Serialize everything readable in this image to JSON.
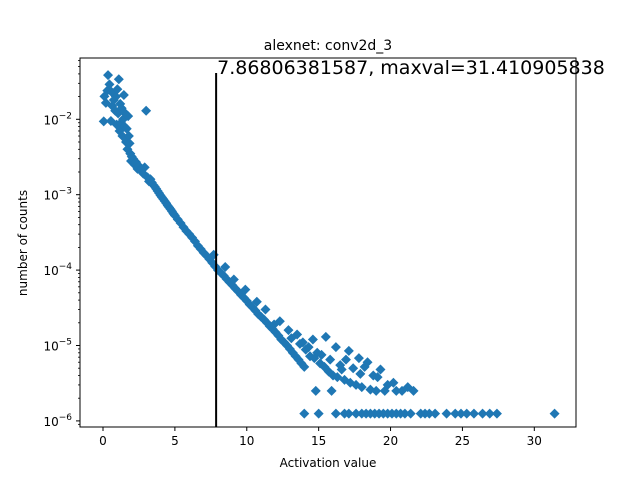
{
  "chart_data": {
    "type": "scatter",
    "title": "alexnet: conv2d_3",
    "xlabel": "Activation value",
    "ylabel": "number of counts",
    "xlim": [
      -1.6,
      32.9
    ],
    "ylim": [
      8.3e-07,
      0.065
    ],
    "yscale": "log",
    "x_ticks": [
      0,
      5,
      10,
      15,
      20,
      25,
      30
    ],
    "y_ticks": [
      {
        "value": 1e-06,
        "base": "10",
        "exp": "−6"
      },
      {
        "value": 1e-05,
        "base": "10",
        "exp": "−5"
      },
      {
        "value": 0.0001,
        "base": "10",
        "exp": "−4"
      },
      {
        "value": 0.001,
        "base": "10",
        "exp": "−3"
      },
      {
        "value": 0.01,
        "base": "10",
        "exp": "−2"
      }
    ],
    "marker_color": "#1f77b4",
    "marker": "diamond",
    "grid": false,
    "vline": {
      "x": 7.86806381587,
      "color": "#000000"
    },
    "annotation": "7.86806381587, maxval=31.410905838",
    "series": [
      {
        "points": [
          [
            0.05,
            0.0094
          ],
          [
            0.1,
            0.0201
          ],
          [
            0.2,
            0.0165
          ],
          [
            0.3,
            0.024
          ],
          [
            0.35,
            0.0385
          ],
          [
            0.45,
            0.029
          ],
          [
            0.55,
            0.0095
          ],
          [
            0.6,
            0.023
          ],
          [
            0.65,
            0.015
          ],
          [
            0.75,
            0.018
          ],
          [
            0.85,
            0.013
          ],
          [
            0.9,
            0.02
          ],
          [
            0.95,
            0.0085
          ],
          [
            1.0,
            0.025
          ],
          [
            1.05,
            0.012
          ],
          [
            1.1,
            0.034
          ],
          [
            1.15,
            0.007
          ],
          [
            1.2,
            0.016
          ],
          [
            1.25,
            0.009
          ],
          [
            1.3,
            0.014
          ],
          [
            1.35,
            0.006
          ],
          [
            1.4,
            0.01
          ],
          [
            1.45,
            0.021
          ],
          [
            1.5,
            0.008
          ],
          [
            1.55,
            0.012
          ],
          [
            1.6,
            0.005
          ],
          [
            1.65,
            0.0075
          ],
          [
            1.7,
            0.004
          ],
          [
            1.75,
            0.011
          ],
          [
            1.8,
            0.006
          ],
          [
            1.85,
            0.0048
          ],
          [
            1.9,
            0.0035
          ],
          [
            1.95,
            0.0028
          ],
          [
            2.0,
            0.0032
          ],
          [
            2.05,
            0.0027
          ],
          [
            2.1,
            0.003
          ],
          [
            2.2,
            0.0025
          ],
          [
            2.3,
            0.0027
          ],
          [
            2.4,
            0.0022
          ],
          [
            2.5,
            0.0024
          ],
          [
            2.6,
            0.0021
          ],
          [
            2.7,
            0.0022
          ],
          [
            2.8,
            0.0019
          ],
          [
            2.9,
            0.0023
          ],
          [
            3.0,
            0.013
          ],
          [
            3.1,
            0.0017
          ],
          [
            3.2,
            0.0015
          ],
          [
            3.3,
            0.0016
          ],
          [
            3.4,
            0.00145
          ],
          [
            3.5,
            0.00135
          ],
          [
            3.6,
            0.00128
          ],
          [
            3.7,
            0.0012
          ],
          [
            3.8,
            0.00112
          ],
          [
            3.9,
            0.00105
          ],
          [
            4.0,
            0.00098
          ],
          [
            4.1,
            0.00092
          ],
          [
            4.2,
            0.00087
          ],
          [
            4.3,
            0.00082
          ],
          [
            4.4,
            0.00077
          ],
          [
            4.5,
            0.00072
          ],
          [
            4.6,
            0.00068
          ],
          [
            4.7,
            0.00064
          ],
          [
            4.8,
            0.0006
          ],
          [
            4.9,
            0.00056
          ],
          [
            5.0,
            0.00053
          ],
          [
            5.2,
            0.00047
          ],
          [
            5.4,
            0.00042
          ],
          [
            5.6,
            0.00037
          ],
          [
            5.8,
            0.00033
          ],
          [
            6.0,
            0.0003
          ],
          [
            6.2,
            0.00027
          ],
          [
            6.4,
            0.00024
          ],
          [
            6.6,
            0.00021
          ],
          [
            6.8,
            0.00019
          ],
          [
            7.0,
            0.00017
          ],
          [
            7.2,
            0.000155
          ],
          [
            7.4,
            0.00014
          ],
          [
            7.6,
            0.000125
          ],
          [
            7.8,
            0.000112
          ],
          [
            8.0,
            0.0001
          ],
          [
            8.2,
            9.2e-05
          ],
          [
            8.4,
            8.4e-05
          ],
          [
            8.6,
            7.6e-05
          ],
          [
            8.8,
            6.9e-05
          ],
          [
            9.0,
            6.3e-05
          ],
          [
            9.2,
            5.7e-05
          ],
          [
            9.4,
            5.2e-05
          ],
          [
            9.6,
            4.7e-05
          ],
          [
            9.8,
            4.3e-05
          ],
          [
            10.0,
            3.9e-05
          ],
          [
            10.2,
            3.5e-05
          ],
          [
            10.4,
            3.2e-05
          ],
          [
            10.6,
            2.9e-05
          ],
          [
            10.8,
            2.6e-05
          ],
          [
            11.0,
            2.4e-05
          ],
          [
            11.2,
            2.2e-05
          ],
          [
            11.4,
            2e-05
          ],
          [
            11.6,
            1.8e-05
          ],
          [
            11.8,
            1.65e-05
          ],
          [
            12.0,
            1.5e-05
          ],
          [
            12.2,
            1.35e-05
          ],
          [
            12.4,
            1.2e-05
          ],
          [
            12.6,
            1.1e-05
          ],
          [
            12.8,
            1e-05
          ],
          [
            13.0,
            9e-06
          ],
          [
            13.2,
            8e-06
          ],
          [
            13.4,
            7.2e-06
          ],
          [
            13.6,
            6.5e-06
          ],
          [
            13.8,
            5.8e-06
          ],
          [
            14.0,
            5.2e-06
          ],
          [
            7.7,
            0.00016
          ],
          [
            8.5,
            0.00011
          ],
          [
            9.1,
            7.5e-05
          ],
          [
            9.9,
            5.5e-05
          ],
          [
            10.7,
            3.8e-05
          ],
          [
            11.3,
            3e-05
          ],
          [
            12.3,
            2.1e-05
          ],
          [
            12.9,
            1.6e-05
          ],
          [
            13.5,
            1.4e-05
          ],
          [
            13.9,
            1.1e-05
          ],
          [
            14.3,
            9.5e-06
          ],
          [
            14.6,
            1.2e-05
          ],
          [
            14.9,
            8e-06
          ],
          [
            15.2,
            7.5e-06
          ],
          [
            15.5,
            1.3e-05
          ],
          [
            15.8,
            6.5e-06
          ],
          [
            16.2,
            9.5e-06
          ],
          [
            16.5,
            5.5e-06
          ],
          [
            16.9,
            6.5e-06
          ],
          [
            17.1,
            8.5e-06
          ],
          [
            17.4,
            5e-06
          ],
          [
            17.8,
            6.8e-06
          ],
          [
            18.2,
            5.2e-06
          ],
          [
            18.4,
            6e-06
          ],
          [
            19.1,
            3.8e-06
          ],
          [
            19.3,
            4.8e-06
          ],
          [
            19.8,
            3e-06
          ],
          [
            20.2,
            3.2e-06
          ],
          [
            20.8,
            2.5e-06
          ],
          [
            21.2,
            2.8e-06
          ],
          [
            11.9,
            1.9e-05
          ],
          [
            13.1,
            1.25e-05
          ],
          [
            13.7,
            1.05e-05
          ],
          [
            14.1,
            8.8e-06
          ],
          [
            14.4,
            7.2e-06
          ],
          [
            14.7,
            6.8e-06
          ],
          [
            15.1,
            5.8e-06
          ],
          [
            15.4,
            5.2e-06
          ],
          [
            15.7,
            4.5e-06
          ],
          [
            16.0,
            4e-06
          ],
          [
            16.3,
            3.8e-06
          ],
          [
            16.8,
            3.5e-06
          ],
          [
            17.2,
            3.2e-06
          ],
          [
            17.6,
            3e-06
          ],
          [
            18.0,
            2.8e-06
          ],
          [
            18.6,
            2.6e-06
          ],
          [
            19.0,
            2.5e-06
          ],
          [
            19.6,
            2.5e-06
          ],
          [
            20.4,
            2.5e-06
          ],
          [
            21.6,
            2.5e-06
          ],
          [
            14.8,
            2.5e-06
          ],
          [
            15.9,
            2.5e-06
          ],
          [
            18.8,
            4e-06
          ],
          [
            17.9,
            4.2e-06
          ],
          [
            16.6,
            4.8e-06
          ],
          [
            14.0,
            1.25e-06
          ],
          [
            15.0,
            1.25e-06
          ],
          [
            16.2,
            1.25e-06
          ],
          [
            16.8,
            1.25e-06
          ],
          [
            17.1,
            1.25e-06
          ],
          [
            17.6,
            1.25e-06
          ],
          [
            18.0,
            1.25e-06
          ],
          [
            18.3,
            1.25e-06
          ],
          [
            18.6,
            1.25e-06
          ],
          [
            18.9,
            1.25e-06
          ],
          [
            19.2,
            1.25e-06
          ],
          [
            19.5,
            1.25e-06
          ],
          [
            19.8,
            1.25e-06
          ],
          [
            20.1,
            1.25e-06
          ],
          [
            20.4,
            1.25e-06
          ],
          [
            20.7,
            1.25e-06
          ],
          [
            21.0,
            1.25e-06
          ],
          [
            21.4,
            1.25e-06
          ],
          [
            22.1,
            1.25e-06
          ],
          [
            22.4,
            1.25e-06
          ],
          [
            22.7,
            1.25e-06
          ],
          [
            23.1,
            1.25e-06
          ],
          [
            23.9,
            1.25e-06
          ],
          [
            24.5,
            1.25e-06
          ],
          [
            24.9,
            1.25e-06
          ],
          [
            25.3,
            1.25e-06
          ],
          [
            25.8,
            1.25e-06
          ],
          [
            26.4,
            1.25e-06
          ],
          [
            26.9,
            1.25e-06
          ],
          [
            27.4,
            1.25e-06
          ],
          [
            31.41,
            1.25e-06
          ]
        ]
      }
    ]
  }
}
